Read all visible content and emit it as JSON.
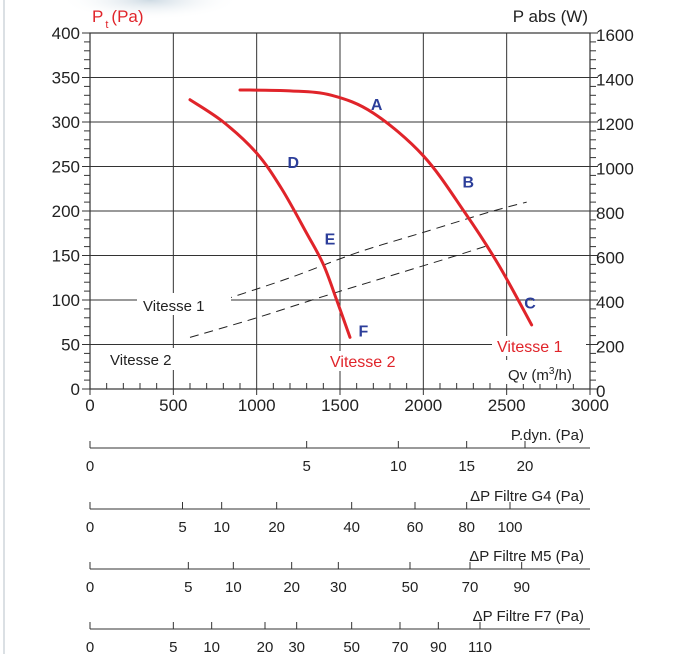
{
  "chart_data": {
    "type": "line",
    "pressure_axis": {
      "symbol": "P",
      "subscript": "t",
      "unit": "(Pa)",
      "ticks": [
        "0",
        "50",
        "100",
        "150",
        "200",
        "250",
        "300",
        "350",
        "400"
      ],
      "range": [
        0,
        400
      ]
    },
    "power_axis": {
      "label": "P abs (W)",
      "ticks": [
        "0",
        "200",
        "400",
        "600",
        "800",
        "1000",
        "1200",
        "1400",
        "1600"
      ],
      "range": [
        0,
        1600
      ]
    },
    "x_axis": {
      "label_main": "Qv (m",
      "label_sup": "3",
      "label_end": "/h)",
      "ticks": [
        "0",
        "500",
        "1000",
        "1500",
        "2000",
        "2500",
        "3000"
      ],
      "range": [
        0,
        3000
      ]
    },
    "series": [
      {
        "name": "Vitesse 1",
        "label": "Vitesse 1",
        "color": "#e0242a",
        "x": [
          900,
          1200,
          1450,
          1700,
          2000,
          2250,
          2450,
          2650
        ],
        "y": [
          336,
          335,
          330,
          310,
          262,
          198,
          140,
          72
        ]
      },
      {
        "name": "Vitesse 2",
        "label": "Vitesse 2",
        "color": "#e0242a",
        "x": [
          600,
          800,
          1000,
          1150,
          1300,
          1400,
          1480,
          1560
        ],
        "y": [
          325,
          300,
          265,
          225,
          175,
          140,
          100,
          58
        ]
      }
    ],
    "curve_points": [
      {
        "label": "A",
        "x": 1720,
        "y": 320
      },
      {
        "label": "B",
        "x": 2270,
        "y": 233
      },
      {
        "label": "C",
        "x": 2640,
        "y": 97
      },
      {
        "label": "D",
        "x": 1220,
        "y": 255
      },
      {
        "label": "E",
        "x": 1440,
        "y": 169
      },
      {
        "label": "F",
        "x": 1640,
        "y": 66
      }
    ],
    "system_curves": [
      {
        "label": "Vitesse 1",
        "x": [
          800,
          1200,
          1600,
          2000,
          2400,
          2620
        ],
        "y": [
          100,
          125,
          153,
          176,
          199,
          210
        ]
      },
      {
        "label": "Vitesse 2",
        "x": [
          600,
          1000,
          1400,
          1800,
          2200,
          2400
        ],
        "y": [
          58,
          80,
          104,
          127,
          150,
          162
        ]
      }
    ],
    "scales": [
      {
        "label": "P.dyn. (Pa)",
        "ticks": [
          {
            "v": 0,
            "t": "0"
          },
          {
            "v": 5,
            "t": "5"
          },
          {
            "v": 10,
            "t": "10"
          },
          {
            "v": 15,
            "t": "15"
          },
          {
            "v": 20,
            "t": "20"
          }
        ],
        "qv_at": [
          0,
          1300,
          1850,
          2260,
          2610
        ]
      },
      {
        "label": "ΔP Filtre G4 (Pa)",
        "ticks": [
          {
            "v": 0,
            "t": "0"
          },
          {
            "v": 5,
            "t": "5"
          },
          {
            "v": 10,
            "t": "10"
          },
          {
            "v": 20,
            "t": "20"
          },
          {
            "v": 40,
            "t": "40"
          },
          {
            "v": 60,
            "t": "60"
          },
          {
            "v": 80,
            "t": "80"
          },
          {
            "v": 100,
            "t": "100"
          }
        ],
        "qv_at": [
          0,
          555,
          790,
          1120,
          1570,
          1950,
          2260,
          2520
        ]
      },
      {
        "label": "ΔP Filtre M5 (Pa)",
        "ticks": [
          {
            "v": 0,
            "t": "0"
          },
          {
            "v": 5,
            "t": "5"
          },
          {
            "v": 10,
            "t": "10"
          },
          {
            "v": 20,
            "t": "20"
          },
          {
            "v": 30,
            "t": "30"
          },
          {
            "v": 50,
            "t": "50"
          },
          {
            "v": 70,
            "t": "70"
          },
          {
            "v": 90,
            "t": "90"
          }
        ],
        "qv_at": [
          0,
          590,
          860,
          1210,
          1490,
          1920,
          2280,
          2590
        ]
      },
      {
        "label": "ΔP Filtre F7 (Pa)",
        "ticks": [
          {
            "v": 0,
            "t": "0"
          },
          {
            "v": 5,
            "t": "5"
          },
          {
            "v": 10,
            "t": "10"
          },
          {
            "v": 20,
            "t": "20"
          },
          {
            "v": 30,
            "t": "30"
          },
          {
            "v": 50,
            "t": "50"
          },
          {
            "v": 70,
            "t": "70"
          },
          {
            "v": 90,
            "t": "90"
          },
          {
            "v": 110,
            "t": "110"
          }
        ],
        "qv_at": [
          0,
          500,
          730,
          1050,
          1240,
          1570,
          1860,
          2090,
          2340
        ]
      }
    ],
    "grid": true,
    "colors": {
      "curve": "#e0242a",
      "letters": "#2c3e9a",
      "axis": "#222222"
    }
  }
}
